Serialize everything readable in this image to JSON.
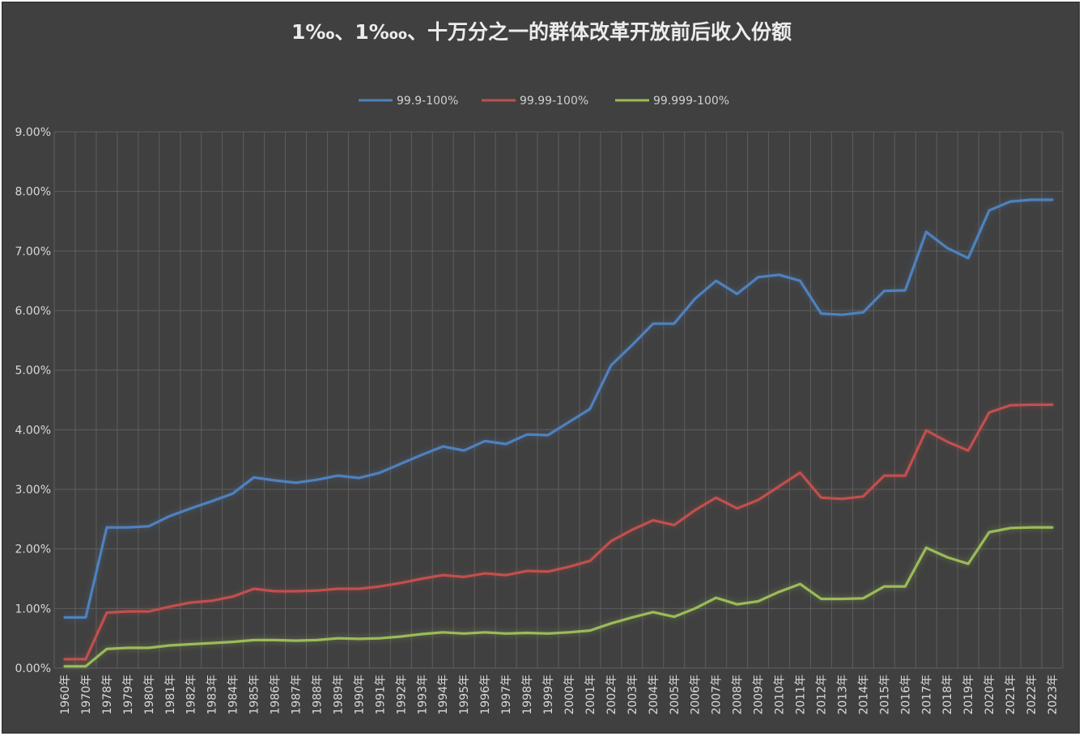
{
  "chart_data": {
    "type": "line",
    "title": "1‰、1‱、十万分之一的群体改革开放前后收入份额",
    "xlabel": "",
    "ylabel": "",
    "ylim": [
      0,
      9
    ],
    "y_ticks": [
      "0.00%",
      "1.00%",
      "2.00%",
      "3.00%",
      "4.00%",
      "5.00%",
      "6.00%",
      "7.00%",
      "8.00%",
      "9.00%"
    ],
    "grid": true,
    "legend_position": "top",
    "categories": [
      "1960年",
      "1970年",
      "1978年",
      "1979年",
      "1980年",
      "1981年",
      "1982年",
      "1983年",
      "1984年",
      "1985年",
      "1986年",
      "1987年",
      "1988年",
      "1989年",
      "1990年",
      "1991年",
      "1992年",
      "1993年",
      "1994年",
      "1995年",
      "1996年",
      "1997年",
      "1998年",
      "1999年",
      "2000年",
      "2001年",
      "2002年",
      "2003年",
      "2004年",
      "2005年",
      "2006年",
      "2007年",
      "2008年",
      "2009年",
      "2010年",
      "2011年",
      "2012年",
      "2013年",
      "2014年",
      "2015年",
      "2016年",
      "2017年",
      "2018年",
      "2019年",
      "2020年",
      "2021年",
      "2022年",
      "2023年"
    ],
    "series": [
      {
        "name": "99.9-100%",
        "color": "#4f81bd",
        "values": [
          0.85,
          0.85,
          2.36,
          2.36,
          2.38,
          2.55,
          2.68,
          2.8,
          2.93,
          3.2,
          3.15,
          3.11,
          3.16,
          3.23,
          3.19,
          3.28,
          3.43,
          3.58,
          3.72,
          3.65,
          3.81,
          3.76,
          3.92,
          3.91,
          4.13,
          4.35,
          5.08,
          5.42,
          5.78,
          5.78,
          6.2,
          6.5,
          6.28,
          6.56,
          6.6,
          6.5,
          5.95,
          5.93,
          5.97,
          6.33,
          6.34,
          7.32,
          7.05,
          6.88,
          7.68,
          7.83,
          7.86,
          7.86
        ]
      },
      {
        "name": "99.99-100%",
        "color": "#c0504d",
        "values": [
          0.15,
          0.15,
          0.93,
          0.95,
          0.95,
          1.03,
          1.1,
          1.13,
          1.2,
          1.33,
          1.29,
          1.29,
          1.3,
          1.33,
          1.33,
          1.37,
          1.43,
          1.5,
          1.56,
          1.53,
          1.59,
          1.56,
          1.63,
          1.62,
          1.7,
          1.8,
          2.13,
          2.32,
          2.48,
          2.4,
          2.65,
          2.86,
          2.68,
          2.82,
          3.05,
          3.28,
          2.86,
          2.84,
          2.88,
          3.23,
          3.23,
          3.99,
          3.8,
          3.65,
          4.29,
          4.41,
          4.42,
          4.42
        ]
      },
      {
        "name": "99.999-100%",
        "color": "#9bbb59",
        "values": [
          0.03,
          0.03,
          0.32,
          0.34,
          0.34,
          0.38,
          0.4,
          0.42,
          0.44,
          0.47,
          0.47,
          0.46,
          0.47,
          0.5,
          0.49,
          0.5,
          0.53,
          0.57,
          0.6,
          0.58,
          0.6,
          0.58,
          0.59,
          0.58,
          0.6,
          0.63,
          0.75,
          0.85,
          0.94,
          0.86,
          1.0,
          1.18,
          1.07,
          1.12,
          1.28,
          1.41,
          1.16,
          1.16,
          1.17,
          1.37,
          1.37,
          2.02,
          1.86,
          1.75,
          2.28,
          2.35,
          2.36,
          2.36
        ]
      }
    ]
  }
}
